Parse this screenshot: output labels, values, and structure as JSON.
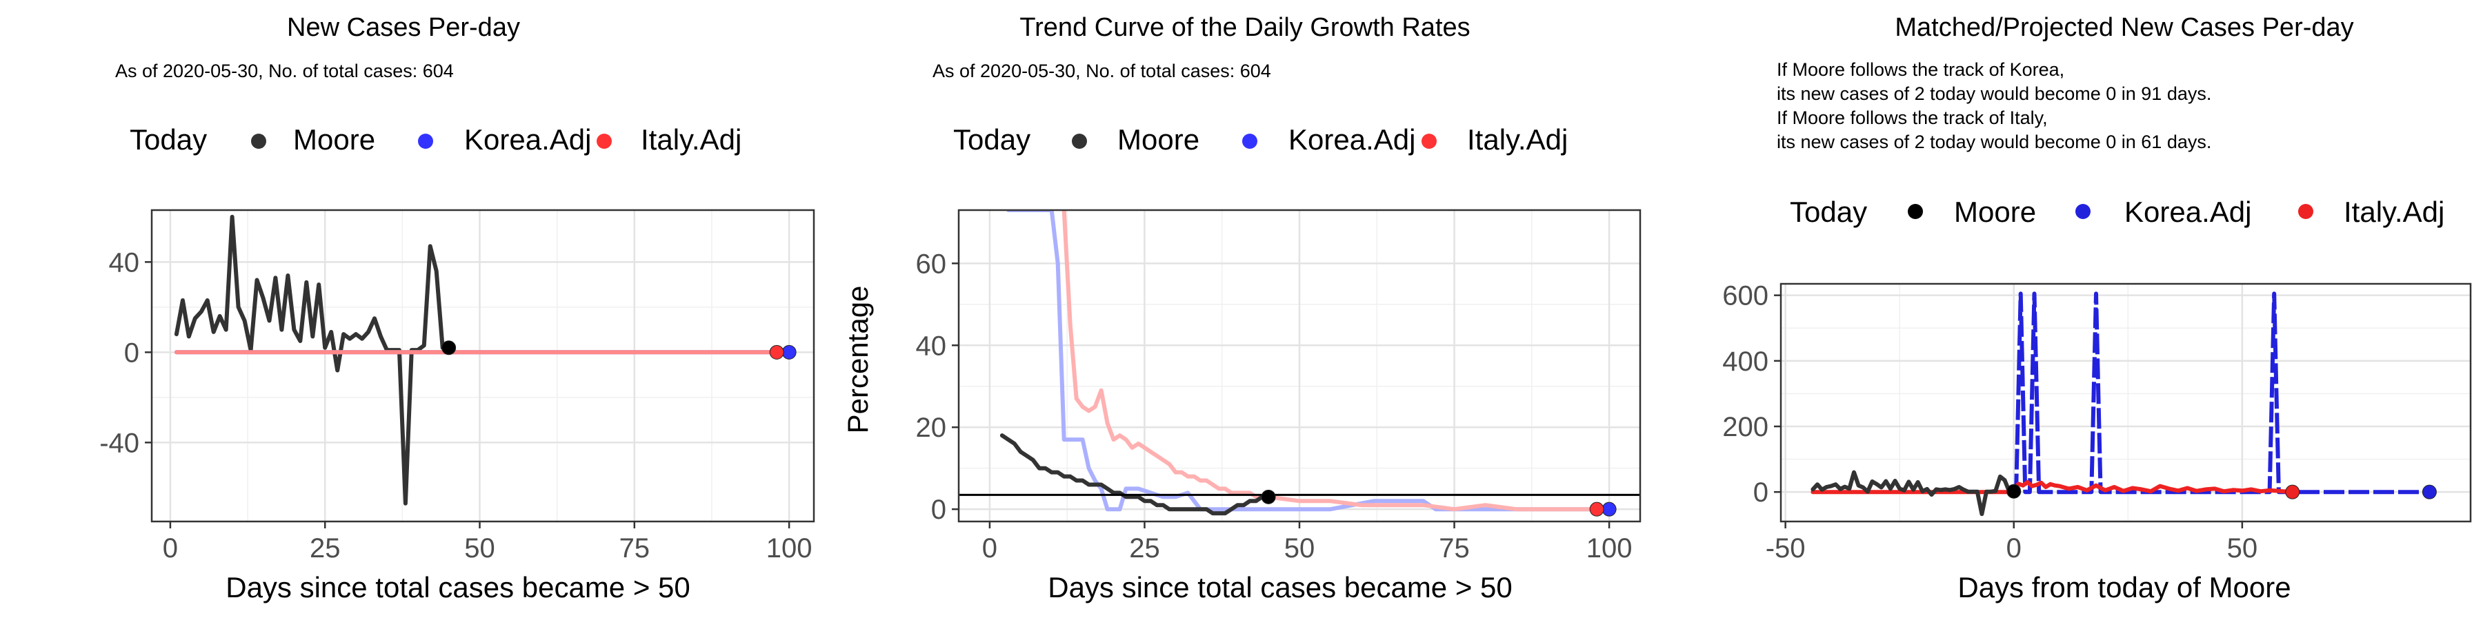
{
  "chart_data": [
    {
      "type": "line",
      "title": "New Cases Per-day",
      "subtitle": "As of 2020-05-30, No. of total cases: 604",
      "xlabel": "Days since total cases became > 50",
      "ylabel": "",
      "xlim": [
        -3,
        104
      ],
      "ylim": [
        -75,
        63
      ],
      "xticks": [
        0,
        25,
        50,
        75,
        100
      ],
      "xtick_labels": [
        "0",
        "25",
        "50",
        "75",
        "100"
      ],
      "yticks": [
        -40,
        0,
        40
      ],
      "ytick_labels": [
        "-40",
        "0",
        "40"
      ],
      "grid": true,
      "legend_position": "top",
      "legend": {
        "title": "Today",
        "entries": [
          "Moore",
          "Korea.Adj",
          "Italy.Adj"
        ]
      },
      "series": [
        {
          "name": "Moore",
          "color": "#333333",
          "x": [
            1,
            2,
            3,
            4,
            5,
            6,
            7,
            8,
            9,
            10,
            11,
            12,
            13,
            14,
            15,
            16,
            17,
            18,
            19,
            20,
            21,
            22,
            23,
            24,
            25,
            26,
            27,
            28,
            29,
            30,
            31,
            32,
            33,
            34,
            35,
            36,
            37,
            38,
            39,
            40,
            41,
            42,
            43,
            44,
            45
          ],
          "y": [
            8,
            23,
            7,
            15,
            18,
            23,
            9,
            16,
            10,
            60,
            20,
            14,
            1,
            32,
            24,
            14,
            33,
            10,
            34,
            10,
            5,
            31,
            7,
            30,
            2,
            9,
            -8,
            8,
            6,
            8,
            6,
            9,
            15,
            7,
            1,
            1,
            1,
            -67,
            1,
            1,
            3,
            47,
            36,
            2,
            2
          ]
        },
        {
          "name": "Korea.Adj",
          "color": "#7b7bff",
          "x": [
            1,
            100
          ],
          "y": [
            0,
            0
          ]
        },
        {
          "name": "Italy.Adj",
          "color": "#ff8888",
          "x": [
            1,
            98
          ],
          "y": [
            0,
            0
          ]
        }
      ],
      "points": [
        {
          "name": "Moore",
          "x": 45,
          "y": 2,
          "color": "#000000"
        },
        {
          "name": "Korea.Adj",
          "x": 100,
          "y": 0,
          "color": "#3333ff"
        },
        {
          "name": "Italy.Adj",
          "x": 98,
          "y": 0,
          "color": "#ff3333"
        }
      ]
    },
    {
      "type": "line",
      "title": "Trend Curve of the Daily Growth Rates",
      "subtitle": "As of 2020-05-30, No. of total cases: 604",
      "xlabel": "Days since total cases became > 50",
      "ylabel": "Percentage",
      "xlim": [
        -5,
        105
      ],
      "ylim": [
        -3,
        73
      ],
      "xticks": [
        0,
        25,
        50,
        75,
        100
      ],
      "xtick_labels": [
        "0",
        "25",
        "50",
        "75",
        "100"
      ],
      "yticks": [
        0,
        20,
        40,
        60
      ],
      "ytick_labels": [
        "0",
        "20",
        "40",
        "60"
      ],
      "hline": 3.5,
      "grid": true,
      "legend_position": "top",
      "legend": {
        "title": "Today",
        "entries": [
          "Moore",
          "Korea.Adj",
          "Italy.Adj"
        ]
      },
      "series": [
        {
          "name": "Korea.Adj",
          "color": "#aab0ff",
          "x": [
            3,
            10,
            11,
            12,
            13,
            14,
            15,
            16,
            17,
            18,
            19,
            20,
            21,
            22,
            24,
            26,
            28,
            30,
            32,
            34,
            38,
            45,
            55,
            62,
            65,
            70,
            72,
            75,
            80,
            90,
            100
          ],
          "y": [
            73,
            73,
            60,
            17,
            17,
            17,
            17,
            10,
            7,
            5,
            0,
            0,
            0,
            5,
            5,
            4,
            3,
            3,
            4,
            0,
            0,
            0,
            0,
            2,
            2,
            2,
            0,
            0,
            0,
            0,
            0
          ]
        },
        {
          "name": "Italy.Adj",
          "color": "#ffb0b0",
          "x": [
            12,
            13,
            14,
            15,
            16,
            17,
            18,
            19,
            20,
            21,
            22,
            23,
            24,
            25,
            26,
            27,
            28,
            29,
            30,
            31,
            32,
            33,
            34,
            35,
            36,
            37,
            38,
            39,
            40,
            41,
            42,
            43,
            44,
            45,
            50,
            55,
            60,
            65,
            70,
            75,
            80,
            85,
            90,
            98
          ],
          "y": [
            73,
            45,
            27,
            25,
            24,
            25,
            29,
            21,
            17,
            18,
            17,
            15,
            16,
            15,
            14,
            13,
            12,
            11,
            9,
            9,
            8,
            8,
            7,
            7,
            6,
            5,
            5,
            4,
            4,
            4,
            4,
            3,
            3,
            3,
            2,
            2,
            1,
            1,
            1,
            0,
            1,
            0,
            0,
            0
          ]
        },
        {
          "name": "Moore",
          "color": "#333333",
          "x": [
            2,
            3,
            4,
            5,
            6,
            7,
            8,
            9,
            10,
            11,
            12,
            13,
            14,
            15,
            16,
            17,
            18,
            19,
            20,
            21,
            22,
            23,
            24,
            25,
            26,
            27,
            28,
            29,
            30,
            31,
            32,
            33,
            34,
            35,
            36,
            37,
            38,
            39,
            40,
            41,
            42,
            43,
            44,
            45
          ],
          "y": [
            18,
            17,
            16,
            14,
            13,
            12,
            10,
            10,
            9,
            9,
            8,
            8,
            7,
            7,
            6,
            6,
            6,
            5,
            4,
            4,
            3,
            3,
            3,
            2,
            2,
            1,
            1,
            0,
            0,
            0,
            0,
            0,
            0,
            0,
            -1,
            -1,
            -1,
            0,
            1,
            1,
            2,
            2,
            3,
            3
          ]
        }
      ],
      "points": [
        {
          "name": "Moore",
          "x": 45,
          "y": 3,
          "color": "#000000"
        },
        {
          "name": "Korea.Adj",
          "x": 100,
          "y": 0,
          "color": "#3333ff"
        },
        {
          "name": "Italy.Adj",
          "x": 98,
          "y": 0,
          "color": "#ff3333"
        }
      ]
    },
    {
      "type": "line",
      "title": "Matched/Projected New Cases Per-day",
      "subtitle_lines": [
        "If Moore follows the track of Korea,",
        "its new cases of 2 today would become 0 in 91 days.",
        "If Moore follows the track of Italy,",
        "its new cases of 2 today would become 0 in 61 days."
      ],
      "xlabel": "Days from today of Moore",
      "ylabel": "",
      "xlim": [
        -51,
        100
      ],
      "ylim": [
        -90,
        635
      ],
      "xticks": [
        -50,
        0,
        50
      ],
      "xtick_labels": [
        "-50",
        "0",
        "50"
      ],
      "yticks": [
        0,
        200,
        400,
        600
      ],
      "ytick_labels": [
        "0",
        "200",
        "400",
        "600"
      ],
      "grid": true,
      "legend_position": "top",
      "legend": {
        "title": "Today",
        "entries": [
          "Moore",
          "Korea.Adj",
          "Italy.Adj"
        ]
      },
      "series": [
        {
          "name": "Korea.Adj",
          "color": "#2222dd",
          "dashed": true,
          "x": [
            0,
            0.5,
            1,
            1.5,
            2,
            2.5,
            3,
            3.5,
            4,
            4.5,
            5,
            5.5,
            6,
            6.5,
            7,
            17,
            17.5,
            18,
            18.5,
            19,
            56,
            56.5,
            57,
            57.5,
            58,
            91
          ],
          "y": [
            0,
            0,
            300,
            605,
            300,
            0,
            0,
            0,
            300,
            605,
            300,
            0,
            0,
            0,
            0,
            0,
            300,
            605,
            300,
            0,
            0,
            300,
            605,
            300,
            0,
            0
          ]
        },
        {
          "name": "Italy.Adj",
          "color": "#ee2222",
          "x": [
            -44,
            -40,
            -35,
            -30,
            -25,
            -20,
            -15,
            -10,
            -5,
            0,
            1,
            2,
            3,
            4,
            5,
            6,
            7,
            8,
            9,
            10,
            12,
            14,
            16,
            18,
            20,
            22,
            24,
            26,
            28,
            30,
            32,
            34,
            36,
            38,
            40,
            42,
            44,
            46,
            48,
            50,
            52,
            54,
            56,
            58,
            60,
            61
          ],
          "y": [
            0,
            0,
            0,
            0,
            0,
            0,
            0,
            0,
            0,
            0,
            25,
            20,
            30,
            18,
            22,
            28,
            15,
            24,
            20,
            18,
            10,
            15,
            5,
            20,
            5,
            15,
            3,
            12,
            8,
            2,
            18,
            10,
            4,
            12,
            3,
            8,
            10,
            2,
            6,
            4,
            8,
            2,
            5,
            3,
            1,
            0
          ]
        },
        {
          "name": "Moore",
          "color": "#333333",
          "x": [
            -44,
            -43,
            -42,
            -41,
            -40,
            -39,
            -38,
            -37,
            -36,
            -35,
            -34,
            -33,
            -32,
            -31,
            -30,
            -29,
            -28,
            -27,
            -26,
            -25,
            -24,
            -23,
            -22,
            -21,
            -20,
            -19,
            -18,
            -17,
            -16,
            -15,
            -14,
            -13,
            -12,
            -11,
            -10,
            -9,
            -8,
            -7,
            -6,
            -5,
            -4,
            -3,
            -2,
            -1,
            0
          ],
          "y": [
            8,
            23,
            7,
            15,
            18,
            23,
            9,
            16,
            10,
            60,
            20,
            14,
            1,
            32,
            24,
            14,
            33,
            10,
            34,
            10,
            5,
            31,
            7,
            30,
            2,
            9,
            -8,
            8,
            6,
            8,
            6,
            9,
            15,
            7,
            1,
            1,
            1,
            -67,
            1,
            1,
            3,
            47,
            36,
            2,
            2
          ]
        }
      ],
      "points": [
        {
          "name": "Moore",
          "x": 0,
          "y": 2,
          "color": "#000000"
        },
        {
          "name": "Korea.Adj",
          "x": 91,
          "y": 0,
          "color": "#2222dd"
        },
        {
          "name": "Italy.Adj",
          "x": 61,
          "y": 0,
          "color": "#ee2222"
        }
      ]
    }
  ]
}
